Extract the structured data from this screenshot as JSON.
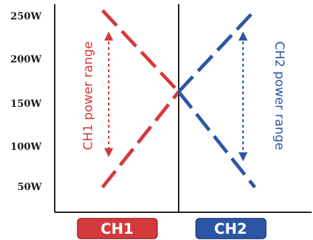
{
  "chart_data": {
    "type": "line",
    "y_ticks": [
      "250W",
      "200W",
      "150W",
      "100W",
      "50W"
    ],
    "ylim": [
      50,
      250
    ],
    "series": [
      {
        "name": "CH1",
        "color": "#d43a3d",
        "lines": [
          {
            "x": [
              -1.0,
              0.0
            ],
            "y": [
              250,
              158
            ]
          },
          {
            "x": [
              -1.0,
              0.0
            ],
            "y": [
              50,
              158
            ]
          }
        ]
      },
      {
        "name": "CH2",
        "color": "#2c56a3",
        "lines": [
          {
            "x": [
              0.0,
              1.0
            ],
            "y": [
              158,
              250
            ]
          },
          {
            "x": [
              0.0,
              1.0
            ],
            "y": [
              158,
              50
            ]
          }
        ]
      }
    ],
    "range_labels": [
      {
        "label": "CH1 power range",
        "color": "#d43a3d",
        "y_from": 90,
        "y_to": 210
      },
      {
        "label": "CH2 power range",
        "color": "#2c56a3",
        "y_from": 85,
        "y_to": 208
      }
    ],
    "x_buttons": [
      {
        "label": "CH1",
        "color": "#d43a3d"
      },
      {
        "label": "CH2",
        "color": "#2c56a3"
      }
    ]
  }
}
